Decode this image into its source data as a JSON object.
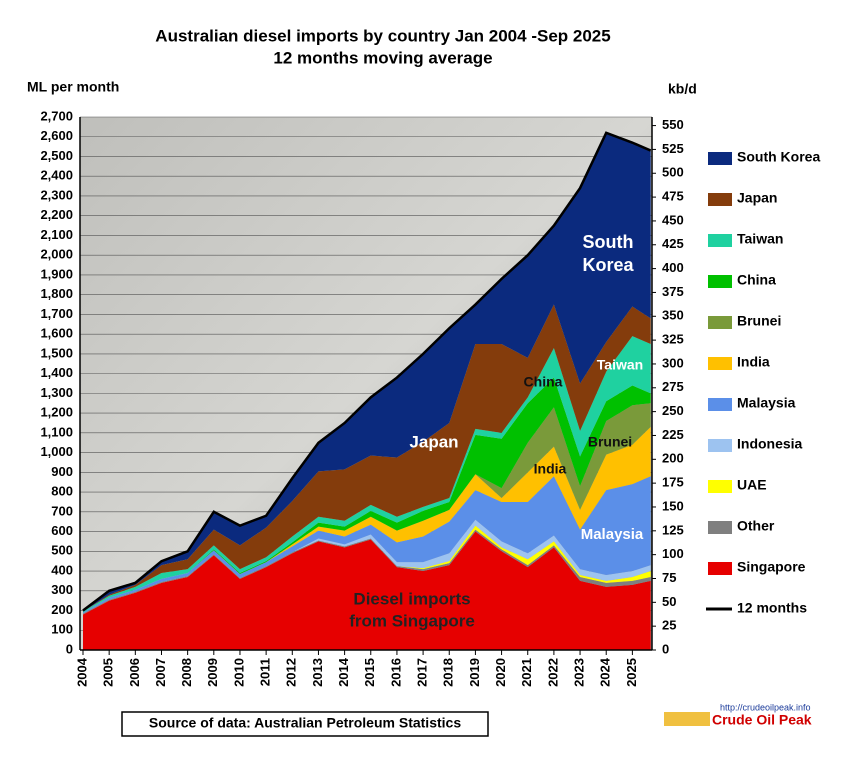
{
  "chart_data": {
    "type": "stacked-area",
    "title": "Australian diesel imports by country Jan 2004 -Sep 2025",
    "subtitle": "12 months moving average",
    "y_label": "ML per month",
    "y2_label": "kb/d",
    "x": [
      2004,
      2005,
      2006,
      2007,
      2008,
      2009,
      2010,
      2011,
      2012,
      2013,
      2014,
      2015,
      2016,
      2017,
      2018,
      2019,
      2020,
      2021,
      2022,
      2023,
      2024,
      2025,
      2025.7
    ],
    "xlim": [
      2004,
      2025.75
    ],
    "xticks": [
      2004,
      2005,
      2006,
      2007,
      2008,
      2009,
      2010,
      2011,
      2012,
      2013,
      2014,
      2015,
      2016,
      2017,
      2018,
      2019,
      2020,
      2021,
      2022,
      2023,
      2024,
      2025
    ],
    "ylim": [
      0,
      2700
    ],
    "yticks": [
      0,
      100,
      200,
      300,
      400,
      500,
      600,
      700,
      800,
      900,
      {
        "value": 1000,
        "label": "1,000"
      },
      {
        "value": 1100,
        "label": "1,100"
      },
      {
        "value": 1200,
        "label": "1,200"
      },
      {
        "value": 1300,
        "label": "1,300"
      },
      {
        "value": 1400,
        "label": "1,400"
      },
      {
        "value": 1500,
        "label": "1,500"
      },
      {
        "value": 1600,
        "label": "1,600"
      },
      {
        "value": 1700,
        "label": "1,700"
      },
      {
        "value": 1800,
        "label": "1,800"
      },
      {
        "value": 1900,
        "label": "1,900"
      },
      {
        "value": 2000,
        "label": "2,000"
      },
      {
        "value": 2100,
        "label": "2,100"
      },
      {
        "value": 2200,
        "label": "2,200"
      },
      {
        "value": 2300,
        "label": "2,300"
      },
      {
        "value": 2400,
        "label": "2,400"
      },
      {
        "value": 2500,
        "label": "2,500"
      },
      {
        "value": 2600,
        "label": "2,600"
      },
      {
        "value": 2700,
        "label": "2,700"
      }
    ],
    "y2lim": [
      0,
      559
    ],
    "y2ticks": [
      0,
      25,
      50,
      75,
      100,
      125,
      150,
      175,
      200,
      225,
      250,
      275,
      300,
      325,
      350,
      375,
      400,
      425,
      450,
      475,
      500,
      525,
      550
    ],
    "series": [
      {
        "name": "Singapore",
        "color": "#e60000",
        "values": [
          180,
          250,
          290,
          340,
          370,
          480,
          360,
          420,
          490,
          550,
          520,
          560,
          420,
          400,
          430,
          600,
          500,
          420,
          520,
          350,
          320,
          330,
          350
        ]
      },
      {
        "name": "Other",
        "color": "#7f7f7f",
        "values": [
          5,
          5,
          5,
          5,
          5,
          5,
          5,
          5,
          5,
          5,
          5,
          5,
          5,
          10,
          10,
          10,
          10,
          10,
          10,
          20,
          20,
          20,
          20
        ]
      },
      {
        "name": "UAE",
        "color": "#ffff00",
        "values": [
          0,
          0,
          0,
          0,
          0,
          0,
          0,
          0,
          0,
          0,
          0,
          0,
          0,
          5,
          10,
          20,
          10,
          30,
          20,
          10,
          10,
          20,
          30
        ]
      },
      {
        "name": "Indonesia",
        "color": "#9dc3f0",
        "values": [
          0,
          0,
          0,
          0,
          0,
          0,
          0,
          0,
          0,
          10,
          10,
          20,
          20,
          30,
          40,
          30,
          30,
          30,
          30,
          30,
          30,
          30,
          30
        ]
      },
      {
        "name": "Malaysia",
        "color": "#5b8fe8",
        "values": [
          5,
          10,
          10,
          15,
          15,
          20,
          20,
          20,
          30,
          40,
          40,
          50,
          100,
          130,
          160,
          150,
          200,
          260,
          300,
          200,
          430,
          440,
          450
        ]
      },
      {
        "name": "India",
        "color": "#ffc000",
        "values": [
          0,
          0,
          0,
          0,
          0,
          0,
          0,
          0,
          10,
          20,
          30,
          40,
          60,
          80,
          60,
          80,
          20,
          150,
          150,
          100,
          180,
          200,
          250
        ]
      },
      {
        "name": "Brunei",
        "color": "#7a9a3a",
        "values": [
          0,
          0,
          0,
          0,
          0,
          0,
          0,
          0,
          0,
          0,
          0,
          0,
          0,
          0,
          0,
          0,
          50,
          150,
          200,
          120,
          170,
          200,
          120
        ]
      },
      {
        "name": "China",
        "color": "#00c000",
        "values": [
          0,
          0,
          0,
          0,
          0,
          5,
          5,
          5,
          10,
          20,
          20,
          30,
          40,
          50,
          40,
          200,
          250,
          200,
          150,
          150,
          100,
          100,
          50
        ]
      },
      {
        "name": "Taiwan",
        "color": "#1fd1a0",
        "values": [
          5,
          10,
          15,
          30,
          20,
          20,
          20,
          20,
          30,
          30,
          30,
          30,
          30,
          20,
          20,
          30,
          30,
          30,
          150,
          130,
          150,
          250,
          250
        ]
      },
      {
        "name": "Japan",
        "color": "#843c0c",
        "values": [
          0,
          5,
          10,
          40,
          50,
          80,
          120,
          150,
          180,
          230,
          260,
          250,
          300,
          330,
          380,
          430,
          450,
          200,
          220,
          240,
          150,
          150,
          130
        ]
      },
      {
        "name": "South Korea",
        "color": "#0b2a7e",
        "values": [
          5,
          20,
          10,
          20,
          40,
          90,
          100,
          60,
          115,
          145,
          235,
          295,
          405,
          445,
          480,
          200,
          330,
          520,
          400,
          990,
          1060,
          830,
          850
        ]
      }
    ],
    "total": {
      "name": "12 months",
      "color": "#000000",
      "values": [
        200,
        300,
        340,
        450,
        500,
        700,
        630,
        680,
        870,
        1050,
        1150,
        1280,
        1380,
        1500,
        1630,
        1750,
        1880,
        2000,
        2150,
        2340,
        2620,
        2570,
        2530
      ]
    },
    "annotations": [
      [
        "South",
        "Korea"
      ],
      [
        "Japan"
      ],
      [
        "Taiwan"
      ],
      [
        "China"
      ],
      [
        "Brunei"
      ],
      [
        "India"
      ],
      [
        "Malaysia"
      ],
      [
        "Diesel imports",
        "from Singapore"
      ]
    ],
    "source": "Source of data: Australian Petroleum Statistics",
    "logo_url": "http://crudeoilpeak.info",
    "logo_name": "Crude Oil Peak"
  }
}
